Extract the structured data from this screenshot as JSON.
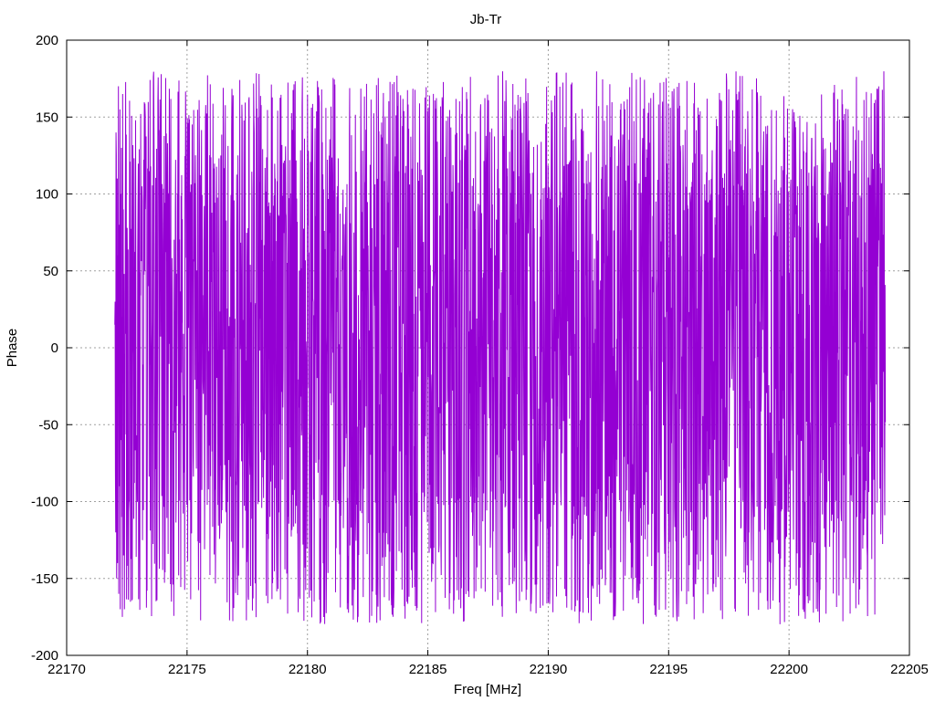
{
  "chart_data": {
    "type": "line",
    "title": "Jb-Tr",
    "xlabel": "Freq [MHz]",
    "ylabel": "Phase",
    "xlim": [
      22170,
      22205
    ],
    "ylim": [
      -200,
      200
    ],
    "xticks": [
      22170,
      22175,
      22180,
      22185,
      22190,
      22195,
      22200,
      22205
    ],
    "yticks": [
      -200,
      -150,
      -100,
      -50,
      0,
      50,
      100,
      150,
      200
    ],
    "grid": true,
    "legend": "none",
    "series": [
      {
        "color": "#9400d3",
        "x_start": 22172.0,
        "x_end": 22204.0,
        "point_count": 2560,
        "value_range": [
          -180,
          180
        ],
        "sample_values": [
          15,
          30,
          -80,
          -120,
          140,
          125,
          -150,
          -100,
          110,
          -140,
          60,
          -30,
          170,
          -160,
          80,
          0,
          -90,
          155,
          -170,
          100,
          45,
          -60,
          130,
          -110,
          20,
          -175,
          165,
          -20,
          90,
          -135
        ]
      }
    ]
  }
}
